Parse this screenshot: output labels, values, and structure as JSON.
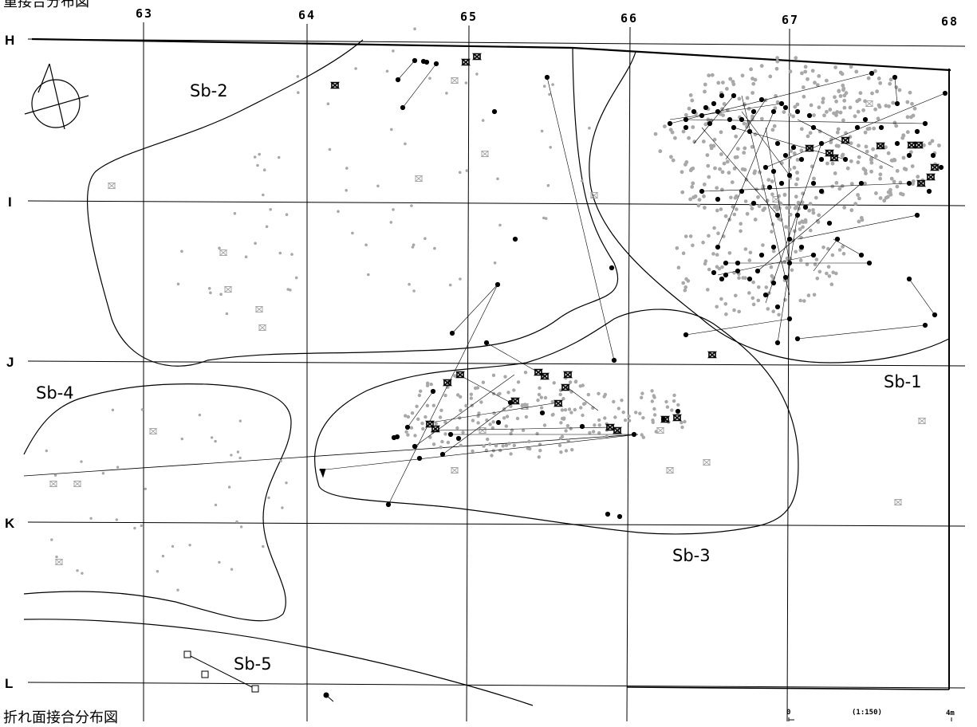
{
  "top_caption": "重接合分布図",
  "bottom_caption": "折れ面接合分布図",
  "grid": {
    "columns": [
      "63",
      "64",
      "65",
      "66",
      "67",
      "68"
    ],
    "rows": [
      "H",
      "I",
      "J",
      "K",
      "L"
    ]
  },
  "zones": {
    "sb1": "Sb-1",
    "sb2": "Sb-2",
    "sb3": "Sb-3",
    "sb4": "Sb-4",
    "sb5": "Sb-5"
  },
  "scale": {
    "start": "0",
    "ratio": "(1:150)",
    "end": "4m"
  },
  "colors": {
    "line": "#000000",
    "joined_point": "#000000",
    "scatter_point": "#a8a8a8"
  },
  "icons": {
    "north": "north-arrow-icon",
    "joined": "filled-dot-icon",
    "scatter": "gray-dot-icon",
    "bowtie": "bowtie-marker-icon",
    "square": "square-marker-icon"
  }
}
